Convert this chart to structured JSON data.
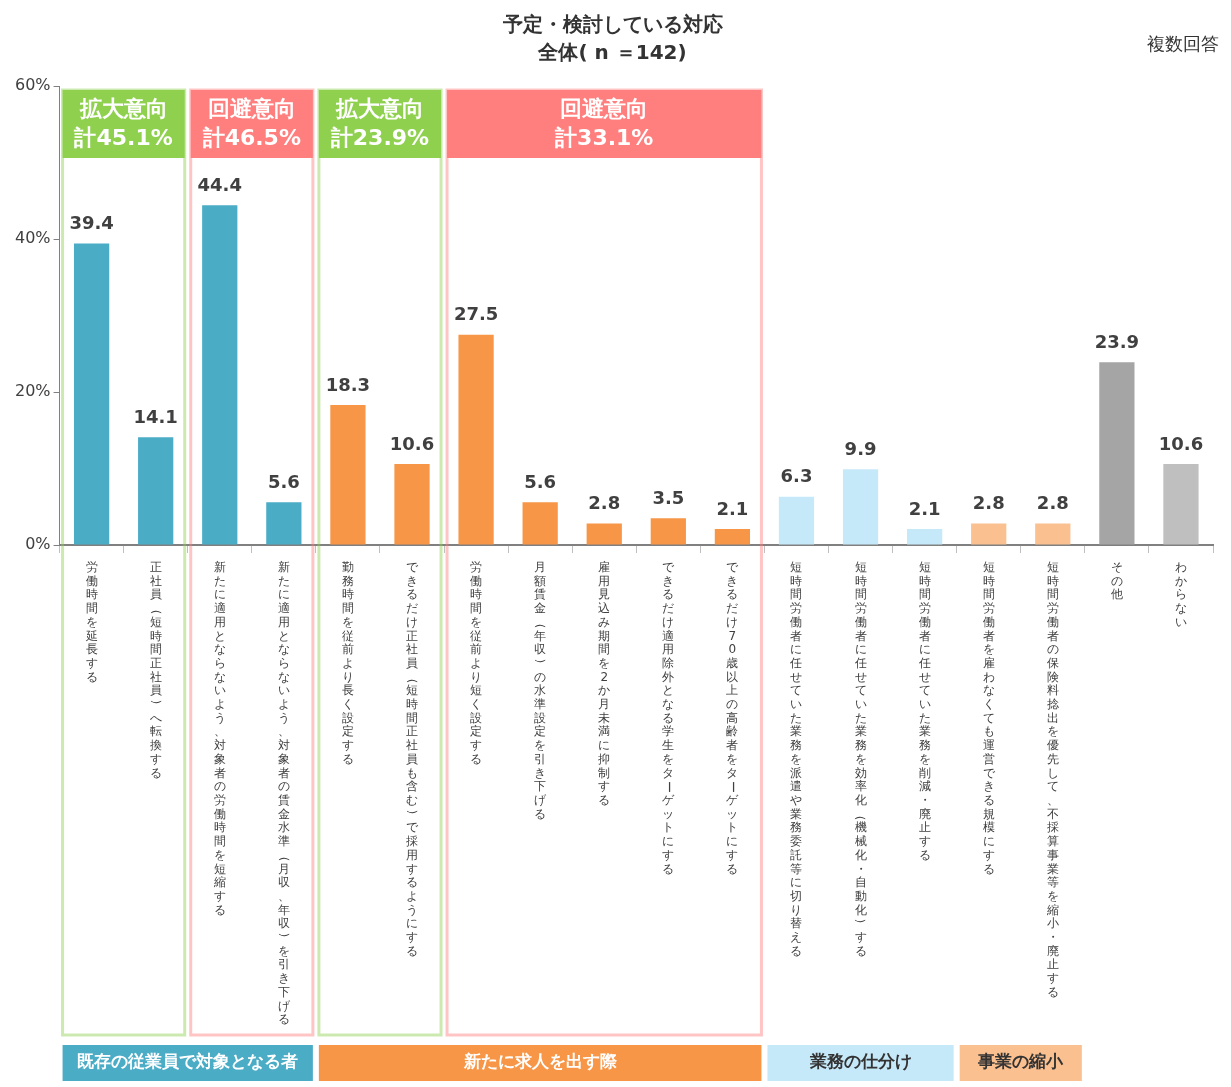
{
  "chart_data": {
    "type": "bar",
    "title": "予定・検討している対応",
    "subtitle": "全体( n ＝142)",
    "categories": [
      "労働時間を延長する",
      "正社員（短時間正社員）へ転換する",
      "新たに適用とならないよう、対象者の労働時間を短縮する",
      "新たに適用とならないよう、対象者の賃金水準（月収、年収）を引き下げる",
      "勤務時間を従前より長く設定する",
      "できるだけ正社員（短時間正社員も含む）で採用するようにする",
      "労働時間を従前より短く設定する",
      "月額賃金（年収）の水準設定を引き下げる",
      "雇用見込み期間を2か月未満に抑制する",
      "できるだけ適用除外となる学生をターゲットにする",
      "できるだけ70歳以上の高齢者をターゲットにする",
      "短時間労働者に任せていた業務を派遣や業務委託等に切り替える",
      "短時間労働者に任せていた業務を効率化（機械化・自動化）する",
      "短時間労働者に任せていた業務を削減・廃止する",
      "短時間労働者を雇わなくても運営できる規模にする",
      "短時間労働者の保険料捻出を優先して、不採算事業等を縮小・廃止する",
      "その他",
      "わからない"
    ],
    "values": [
      39.4,
      14.1,
      44.4,
      5.6,
      18.3,
      10.6,
      27.5,
      5.6,
      2.8,
      3.5,
      2.1,
      6.3,
      9.9,
      2.1,
      2.8,
      2.8,
      23.9,
      10.6
    ],
    "colors": [
      "#4bacc6",
      "#4bacc6",
      "#4bacc6",
      "#4bacc6",
      "#f79646",
      "#f79646",
      "#f79646",
      "#f79646",
      "#f79646",
      "#f79646",
      "#f79646",
      "#c6e9fa",
      "#c6e9fa",
      "#c6e9fa",
      "#fac090",
      "#fac090",
      "#a5a5a5",
      "#bfbfbf"
    ],
    "ylim": [
      0,
      60
    ],
    "yticks": [
      {
        "value": 0,
        "label": "0%"
      },
      {
        "value": 20,
        "label": "20%"
      },
      {
        "value": 40,
        "label": "40%"
      },
      {
        "value": 60,
        "label": "60%"
      }
    ],
    "grid": false,
    "legend": false,
    "data_labels": true,
    "bands": [
      {
        "axis": "x",
        "from": "労働時間を延長する",
        "to": "正社員（短時間正社員）へ転換する",
        "label": "拡大意向計45.1%",
        "color": "#8fd14f"
      },
      {
        "axis": "x",
        "from": "新たに適用とならないよう、対象者の労働時間を短縮する",
        "to": "新たに適用とならないよう、対象者の賃金水準（月収、年収）を引き下げる",
        "label": "回避意向計46.5%",
        "color": "#ff7f7f"
      },
      {
        "axis": "x",
        "from": "勤務時間を従前より長く設定する",
        "to": "できるだけ正社員（短時間正社員も含む）で採用するようにする",
        "label": "拡大意向計23.9%",
        "color": "#8fd14f"
      },
      {
        "axis": "x",
        "from": "労働時間を従前より短く設定する",
        "to": "できるだけ70歳以上の高齢者をターゲットにする",
        "label": "回避意向計33.1%",
        "color": "#ff7f7f"
      }
    ],
    "annotations": [
      "複数回答",
      "既存の従業員で対象となる者",
      "新たに求人を出す際",
      "業務の仕分け",
      "事業の縮小"
    ]
  }
}
